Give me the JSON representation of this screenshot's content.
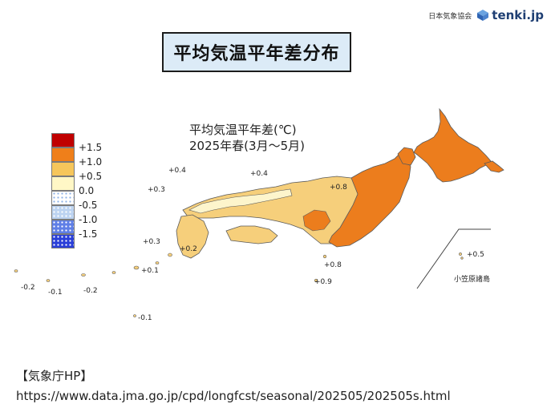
{
  "title": "平均気温平年差分布",
  "brand": {
    "org": "日本気象協会",
    "logo": "tenki.jp",
    "logo_icon": "cube-logo-icon"
  },
  "map": {
    "title_line1": "平均気温平年差(℃)",
    "title_line2": "2025年春(3月〜5月)",
    "region_label": "小笠原諸島",
    "colors": {
      "land_base": "#f6cf7b",
      "land_warm": "#ec7d1d",
      "land_cool": "#fdf5cc",
      "outline": "#5a5a5a"
    },
    "values": [
      "+0.4",
      "+0.4",
      "+0.3",
      "+0.8",
      "+0.3",
      "+0.2",
      "+0.1",
      "-0.2",
      "-0.1",
      "-0.2",
      "+0.8",
      "+0.9",
      "+0.5",
      "-0.1"
    ]
  },
  "legend": [
    {
      "label": "+1.5",
      "color": "#c00000",
      "pattern": ""
    },
    {
      "label": "+1.0",
      "color": "#ef7f1a",
      "pattern": ""
    },
    {
      "label": "+0.5",
      "color": "#f6c65b",
      "pattern": ""
    },
    {
      "label": "0.0",
      "color": "#fff7c6",
      "pattern": ""
    },
    {
      "label": "-0.5",
      "color": "#ffffff",
      "pattern": "dots-light"
    },
    {
      "label": "-1.0",
      "color": "#bcd3f1",
      "pattern": "dots"
    },
    {
      "label": "-1.5",
      "color": "#5f7fe6",
      "pattern": "dots"
    },
    {
      "label": "",
      "color": "#2a3fd8",
      "pattern": "dots-white"
    }
  ],
  "source": {
    "label": "【気象庁HP】",
    "url": "https://www.data.jma.go.jp/cpd/longfcst/seasonal/202505/202505s.html"
  }
}
